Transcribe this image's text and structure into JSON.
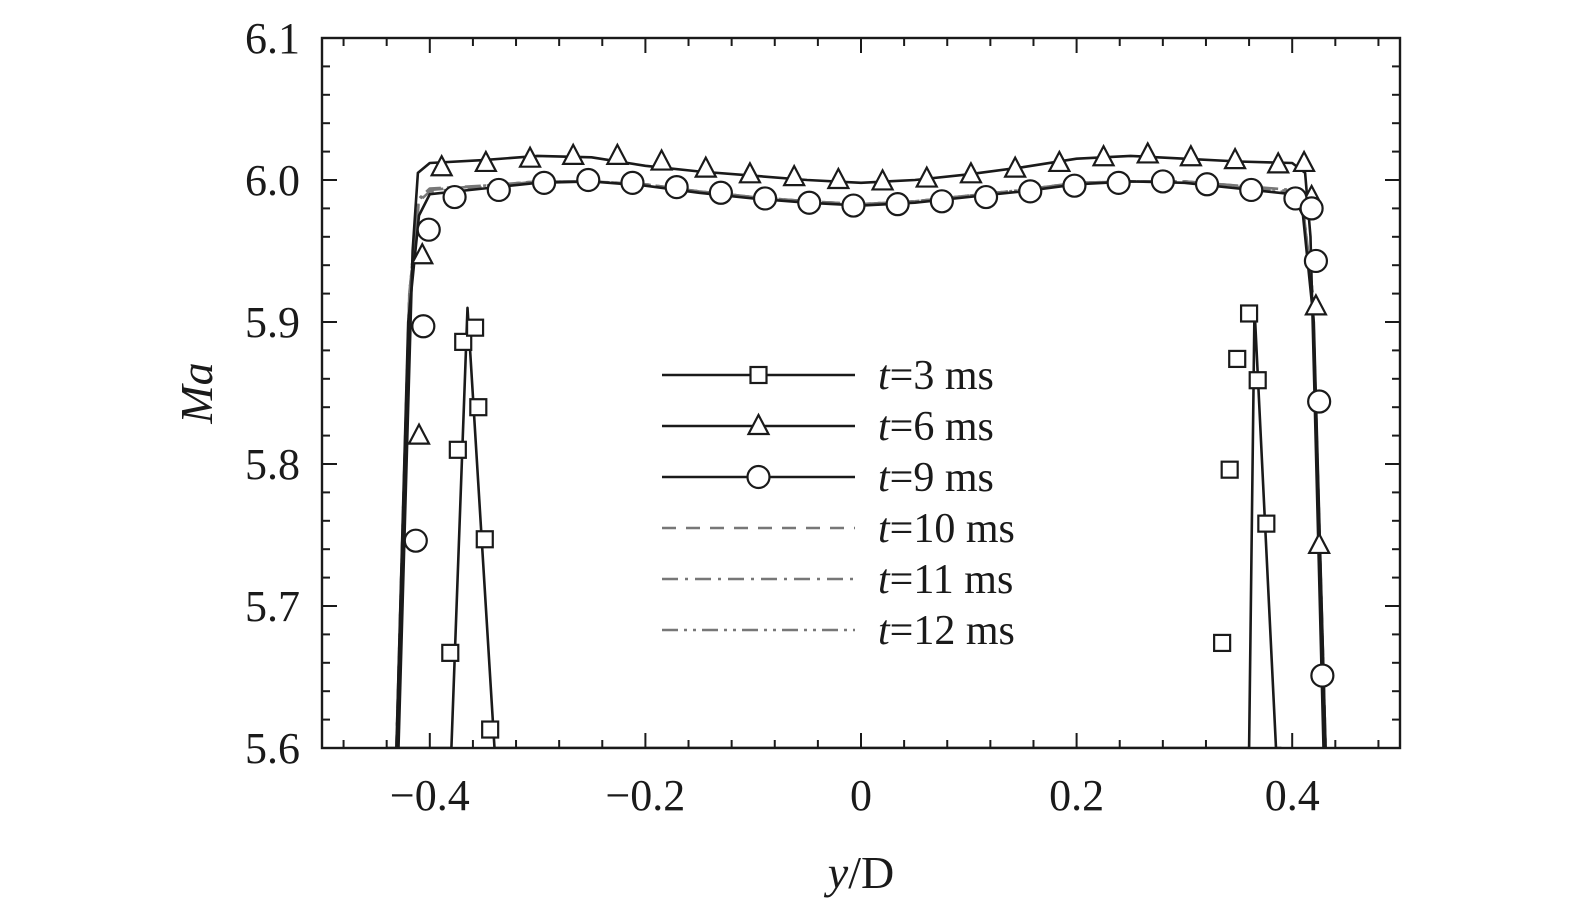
{
  "chart_data": {
    "type": "line",
    "title": "",
    "xlabel_var": "y",
    "xlabel_rest": "/D",
    "ylabel": "Ma",
    "xlim": [
      -0.5,
      0.5
    ],
    "ylim": [
      5.6,
      6.1
    ],
    "xticks": [
      -0.4,
      -0.2,
      0,
      0.2,
      0.4
    ],
    "xtick_labels": [
      "−0.4",
      "−0.2",
      "0",
      "0.2",
      "0.4"
    ],
    "yticks": [
      5.6,
      5.7,
      5.8,
      5.9,
      6.0,
      6.1
    ],
    "ytick_labels": [
      "5.6",
      "5.7",
      "5.8",
      "5.9",
      "6.0",
      "6.1"
    ],
    "grid": false,
    "legend_position": "center",
    "series": [
      {
        "label_var": "t",
        "label_rest": "=3 ms",
        "line": "solid",
        "color": "#1a1a1a",
        "marker": "square",
        "x": [
          -0.44,
          -0.38,
          -0.365,
          -0.34,
          -0.315,
          0.34,
          0.36,
          0.365,
          0.385,
          0.39
        ],
        "y": [
          5.6,
          5.6,
          5.91,
          5.6,
          5.6,
          5.6,
          5.6,
          5.91,
          5.6,
          5.6
        ],
        "marker_points": [
          [
            -0.381,
            5.667
          ],
          [
            -0.374,
            5.81
          ],
          [
            -0.369,
            5.886
          ],
          [
            -0.358,
            5.896
          ],
          [
            -0.355,
            5.84
          ],
          [
            -0.349,
            5.747
          ],
          [
            -0.344,
            5.613
          ],
          [
            0.335,
            5.674
          ],
          [
            0.342,
            5.796
          ],
          [
            0.349,
            5.874
          ],
          [
            0.36,
            5.906
          ],
          [
            0.368,
            5.859
          ],
          [
            0.376,
            5.758
          ]
        ]
      },
      {
        "label_var": "t",
        "label_rest": "=6 ms",
        "line": "solid",
        "color": "#1a1a1a",
        "marker": "triangle",
        "x": [
          -0.429,
          -0.416,
          -0.411,
          -0.4,
          -0.35,
          -0.3,
          -0.25,
          -0.2,
          -0.15,
          -0.1,
          -0.05,
          0,
          0.05,
          0.1,
          0.15,
          0.2,
          0.25,
          0.3,
          0.35,
          0.4,
          0.412,
          0.417,
          0.429
        ],
        "y": [
          5.6,
          5.95,
          6.005,
          6.012,
          6.014,
          6.017,
          6.016,
          6.01,
          6.006,
          6.003,
          6.0,
          5.998,
          6.0,
          6.004,
          6.009,
          6.015,
          6.017,
          6.015,
          6.013,
          6.012,
          6.005,
          5.96,
          5.6
        ],
        "marker_points": [
          [
            -0.41,
            5.82
          ],
          [
            -0.407,
            5.947
          ],
          [
            -0.389,
            6.009
          ],
          [
            -0.348,
            6.012
          ],
          [
            -0.307,
            6.015
          ],
          [
            -0.267,
            6.017
          ],
          [
            -0.226,
            6.017
          ],
          [
            -0.185,
            6.013
          ],
          [
            -0.144,
            6.008
          ],
          [
            -0.103,
            6.004
          ],
          [
            -0.062,
            6.002
          ],
          [
            -0.021,
            6.0
          ],
          [
            0.02,
            5.999
          ],
          [
            0.061,
            6.001
          ],
          [
            0.102,
            6.004
          ],
          [
            0.143,
            6.008
          ],
          [
            0.184,
            6.012
          ],
          [
            0.225,
            6.016
          ],
          [
            0.266,
            6.018
          ],
          [
            0.306,
            6.016
          ],
          [
            0.347,
            6.014
          ],
          [
            0.387,
            6.011
          ],
          [
            0.411,
            6.012
          ],
          [
            0.418,
            5.988
          ],
          [
            0.422,
            5.911
          ],
          [
            0.425,
            5.743
          ]
        ]
      },
      {
        "label_var": "t",
        "label_rest": "=9 ms",
        "line": "solid",
        "color": "#1a1a1a",
        "marker": "circle",
        "x": [
          -0.431,
          -0.42,
          -0.41,
          -0.4,
          -0.35,
          -0.3,
          -0.25,
          -0.2,
          -0.15,
          -0.1,
          -0.05,
          0,
          0.05,
          0.1,
          0.15,
          0.2,
          0.25,
          0.3,
          0.35,
          0.4,
          0.41,
          0.42,
          0.431
        ],
        "y": [
          5.6,
          5.9,
          5.975,
          5.99,
          5.994,
          5.998,
          5.999,
          5.996,
          5.991,
          5.987,
          5.984,
          5.982,
          5.984,
          5.988,
          5.992,
          5.997,
          5.999,
          5.998,
          5.994,
          5.99,
          5.975,
          5.9,
          5.6
        ],
        "marker_points": [
          [
            -0.413,
            5.746
          ],
          [
            -0.406,
            5.897
          ],
          [
            -0.401,
            5.965
          ],
          [
            -0.377,
            5.988
          ],
          [
            -0.336,
            5.993
          ],
          [
            -0.294,
            5.998
          ],
          [
            -0.253,
            6.0
          ],
          [
            -0.212,
            5.998
          ],
          [
            -0.171,
            5.995
          ],
          [
            -0.13,
            5.991
          ],
          [
            -0.089,
            5.987
          ],
          [
            -0.048,
            5.984
          ],
          [
            -0.007,
            5.982
          ],
          [
            0.034,
            5.983
          ],
          [
            0.075,
            5.985
          ],
          [
            0.116,
            5.988
          ],
          [
            0.157,
            5.992
          ],
          [
            0.198,
            5.996
          ],
          [
            0.239,
            5.998
          ],
          [
            0.28,
            5.999
          ],
          [
            0.321,
            5.997
          ],
          [
            0.362,
            5.993
          ],
          [
            0.403,
            5.987
          ],
          [
            0.418,
            5.98
          ],
          [
            0.422,
            5.943
          ],
          [
            0.425,
            5.844
          ],
          [
            0.428,
            5.651
          ]
        ]
      },
      {
        "label_var": "t",
        "label_rest": "=10 ms",
        "line": "dashed",
        "color": "#777777",
        "marker": "none",
        "x": [
          -0.431,
          -0.419,
          -0.41,
          -0.4,
          -0.35,
          -0.3,
          -0.25,
          -0.2,
          -0.15,
          -0.1,
          -0.05,
          0,
          0.05,
          0.1,
          0.15,
          0.2,
          0.25,
          0.3,
          0.35,
          0.4,
          0.41,
          0.419,
          0.431
        ],
        "y": [
          5.6,
          5.92,
          5.985,
          5.992,
          5.995,
          5.999,
          5.999,
          5.997,
          5.992,
          5.988,
          5.985,
          5.983,
          5.985,
          5.989,
          5.993,
          5.998,
          5.999,
          5.999,
          5.995,
          5.991,
          5.98,
          5.92,
          5.6
        ]
      },
      {
        "label_var": "t",
        "label_rest": "=11 ms",
        "line": "dashdot",
        "color": "#777777",
        "marker": "none",
        "x": [
          -0.431,
          -0.419,
          -0.41,
          -0.4,
          -0.35,
          -0.3,
          -0.25,
          -0.2,
          -0.15,
          -0.1,
          -0.05,
          0,
          0.05,
          0.1,
          0.15,
          0.2,
          0.25,
          0.3,
          0.35,
          0.4,
          0.41,
          0.419,
          0.431
        ],
        "y": [
          5.6,
          5.92,
          5.986,
          5.993,
          5.996,
          5.999,
          5.999,
          5.997,
          5.992,
          5.988,
          5.985,
          5.983,
          5.985,
          5.989,
          5.993,
          5.998,
          5.999,
          5.999,
          5.996,
          5.992,
          5.981,
          5.92,
          5.6
        ]
      },
      {
        "label_var": "t",
        "label_rest": "=12 ms",
        "line": "dashdotdot",
        "color": "#777777",
        "marker": "none",
        "x": [
          -0.431,
          -0.419,
          -0.41,
          -0.4,
          -0.35,
          -0.3,
          -0.25,
          -0.2,
          -0.15,
          -0.1,
          -0.05,
          0,
          0.05,
          0.1,
          0.15,
          0.2,
          0.25,
          0.3,
          0.35,
          0.4,
          0.41,
          0.419,
          0.431
        ],
        "y": [
          5.6,
          5.92,
          5.987,
          5.994,
          5.996,
          5.999,
          5.999,
          5.997,
          5.992,
          5.988,
          5.985,
          5.983,
          5.985,
          5.989,
          5.993,
          5.998,
          5.999,
          5.999,
          5.996,
          5.993,
          5.982,
          5.92,
          5.6
        ]
      }
    ]
  }
}
